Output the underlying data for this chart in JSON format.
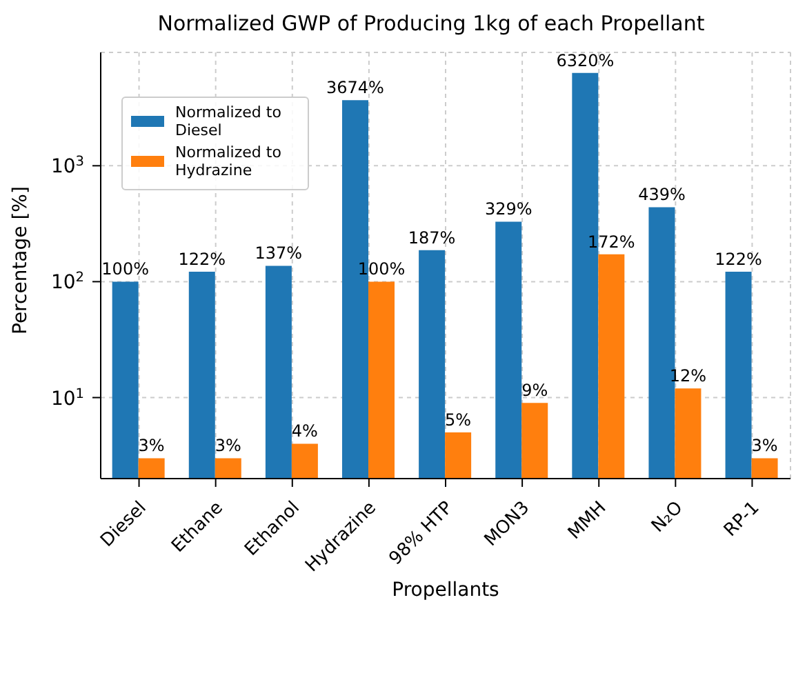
{
  "chart_data": {
    "type": "bar",
    "title": "Normalized GWP of Producing 1kg of each Propellant",
    "xlabel": "Propellants",
    "ylabel": "Percentage [%]",
    "categories": [
      "Diesel",
      "Ethane",
      "Ethanol",
      "Hydrazine",
      "98% HTP",
      "MON3",
      "MMH",
      "N₂O",
      "RP-1"
    ],
    "series": [
      {
        "name": "Normalized to Diesel",
        "color": "#1f77b4",
        "values": [
          100,
          122,
          137,
          3674,
          187,
          329,
          6320,
          439,
          122
        ],
        "value_labels": [
          "100%",
          "122%",
          "137%",
          "3674%",
          "187%",
          "329%",
          "6320%",
          "439%",
          "122%"
        ]
      },
      {
        "name": "Normalized to Hydrazine",
        "color": "#ff7f0e",
        "values": [
          3,
          3,
          4,
          100,
          5,
          9,
          172,
          12,
          3
        ],
        "value_labels": [
          "3%",
          "3%",
          "4%",
          "100%",
          "5%",
          "9%",
          "172%",
          "12%",
          "3%"
        ]
      }
    ],
    "log": "y",
    "ylim": [
      2,
      9500
    ],
    "yticks": [
      {
        "value": 10,
        "label": "10$^{1}$"
      },
      {
        "value": 100,
        "label": "10$^{2}$"
      },
      {
        "value": 1000,
        "label": "10$^{3}$"
      }
    ],
    "grid": true,
    "legend": "top left"
  }
}
